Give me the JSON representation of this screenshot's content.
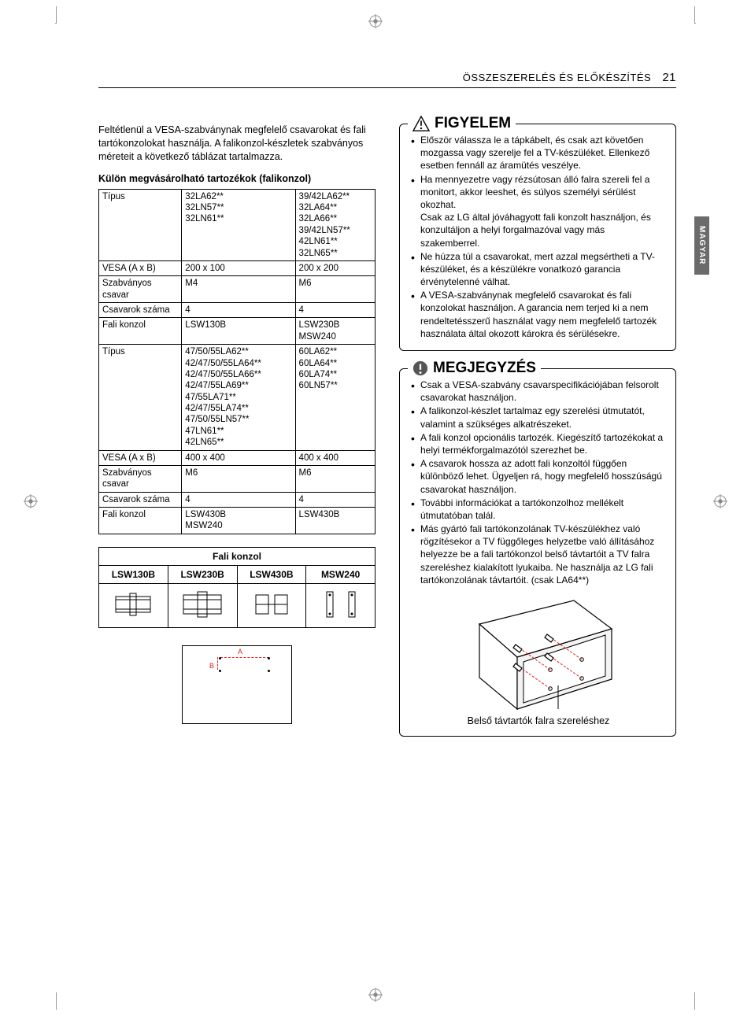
{
  "header": {
    "section": "ÖSSZESZERELÉS ÉS ELŐKÉSZÍTÉS",
    "page": "21"
  },
  "side_tab": "MAGYAR",
  "left": {
    "intro": "Feltétlenül a VESA-szabványnak megfelelő csavarokat és fali tartókonzolokat használja. A falikonzol-készletek szabványos méreteit a következő táblázat tartalmazza.",
    "subhead": "Külön megvásárolható tartozékok (falikonzol)",
    "table": {
      "rows": [
        {
          "label": "Típus",
          "c1": "32LA62**\n32LN57**\n32LN61**",
          "c2": "39/42LA62**\n32LA64**\n32LA66**\n39/42LN57**\n42LN61**\n32LN65**"
        },
        {
          "label": "VESA (A x B)",
          "c1": "200 x  100",
          "c2": "200 x  200"
        },
        {
          "label": "Szabványos csavar",
          "c1": "M4",
          "c2": "M6"
        },
        {
          "label": "Csavarok száma",
          "c1": "4",
          "c2": "4"
        },
        {
          "label": "Fali konzol",
          "c1": "LSW130B",
          "c2": "LSW230B\nMSW240"
        },
        {
          "label": "Típus",
          "c1": "47/50/55LA62**\n42/47/50/55LA64**\n42/47/50/55LA66**\n42/47/55LA69**\n47/55LA71**\n42/47/55LA74**\n47/50/55LN57**\n47LN61**\n42LN65**",
          "c2": "60LA62**\n60LA64**\n60LA74**\n60LN57**"
        },
        {
          "label": "VESA (A x B)",
          "c1": "400 x 400",
          "c2": "400 x 400"
        },
        {
          "label": "Szabványos csavar",
          "c1": "M6",
          "c2": "M6"
        },
        {
          "label": "Csavarok száma",
          "c1": "4",
          "c2": "4"
        },
        {
          "label": "Fali konzol",
          "c1": "LSW430B\nMSW240",
          "c2": "LSW430B"
        }
      ]
    },
    "bracket_table": {
      "title": "Fali konzol",
      "cols": [
        "LSW130B",
        "LSW230B",
        "LSW430B",
        "MSW240"
      ]
    },
    "ab_labels": {
      "a": "A",
      "b": "B"
    }
  },
  "right": {
    "figyelem": {
      "title": "FIGYELEM",
      "items": [
        "Először válassza le a tápkábelt, és csak azt követően mozgassa vagy szerelje fel a TV-készüléket. Ellenkező esetben fennáll az áramütés veszélye.",
        "Ha mennyezetre vagy rézsútosan álló falra szereli fel a monitort, akkor leeshet, és súlyos személyi sérülést okozhat.\nCsak az LG által jóváhagyott fali konzolt használjon, és konzultáljon a helyi forgalmazóval vagy más szakemberrel.",
        "Ne húzza túl a csavarokat, mert azzal megsértheti a TV-készüléket, és a készülékre vonatkozó garancia érvénytelenné válhat.",
        "A VESA-szabványnak megfelelő csavarokat és fali konzolokat használjon. A garancia nem terjed ki a nem rendeltetésszerű használat vagy nem megfelelő tartozék használata által okozott károkra és sérülésekre."
      ]
    },
    "megjegyzes": {
      "title": "MEGJEGYZÉS",
      "items": [
        "Csak a VESA-szabvány csavarspecifikációjában felsorolt csavarokat használjon.",
        "A falikonzol-készlet tartalmaz egy szerelési útmutatót, valamint a szükséges alkatrészeket.",
        "A fali konzol opcionális tartozék. Kiegészítő tartozékokat a helyi termékforgalmazótól szerezhet be.",
        "A csavarok hossza az adott fali konzoltól függően különböző lehet. Ügyeljen rá, hogy megfelelő hosszúságú csavarokat használjon.",
        "További információkat a tartókonzolhoz mellékelt útmutatóban talál.",
        "Más gyártó fali tartókonzolának TV-készülékhez való rögzítésekor a TV függőleges helyzetbe való állításához helyezze be a fali tartókonzol belső távtartóit a TV falra szereléshez kialakított lyukaiba. Ne használja az LG fali tartókonzolának távtartóit. (csak LA64**)"
      ],
      "caption": "Belső távtartók falra szereléshez"
    }
  },
  "colors": {
    "text": "#000000",
    "rule": "#000000",
    "accent": "#d22222",
    "sidetab_bg": "#6b6b6b",
    "sidetab_text": "#ffffff",
    "note_icon_bg": "#555555"
  }
}
